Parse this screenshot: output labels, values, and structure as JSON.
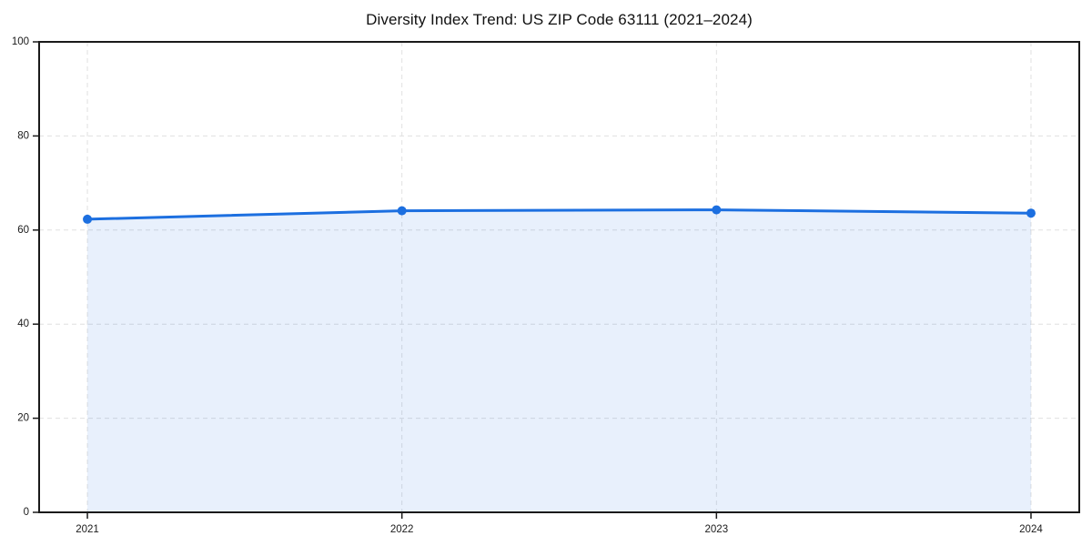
{
  "chart_data": {
    "type": "area",
    "title": "Diversity Index Trend: US ZIP Code 63111 (2021–2024)",
    "categories": [
      "2021",
      "2022",
      "2023",
      "2024"
    ],
    "series": [
      {
        "name": "Diversity Index",
        "values": [
          62.3,
          64.1,
          64.3,
          63.6
        ]
      }
    ],
    "xlabel": "",
    "ylabel": "",
    "ylim": [
      0,
      100
    ],
    "yticks": [
      0,
      20,
      40,
      60,
      80,
      100
    ],
    "grid": true,
    "grid_style": "dashed",
    "legend_position": "none",
    "line_color": "#1c6fe0",
    "marker": "circle",
    "fill_color": "#1c6fe0",
    "fill_opacity": 0.1,
    "grid_color": "#e0e0e0",
    "spine_color": "#1a1a1a",
    "background_color": "#ffffff"
  }
}
